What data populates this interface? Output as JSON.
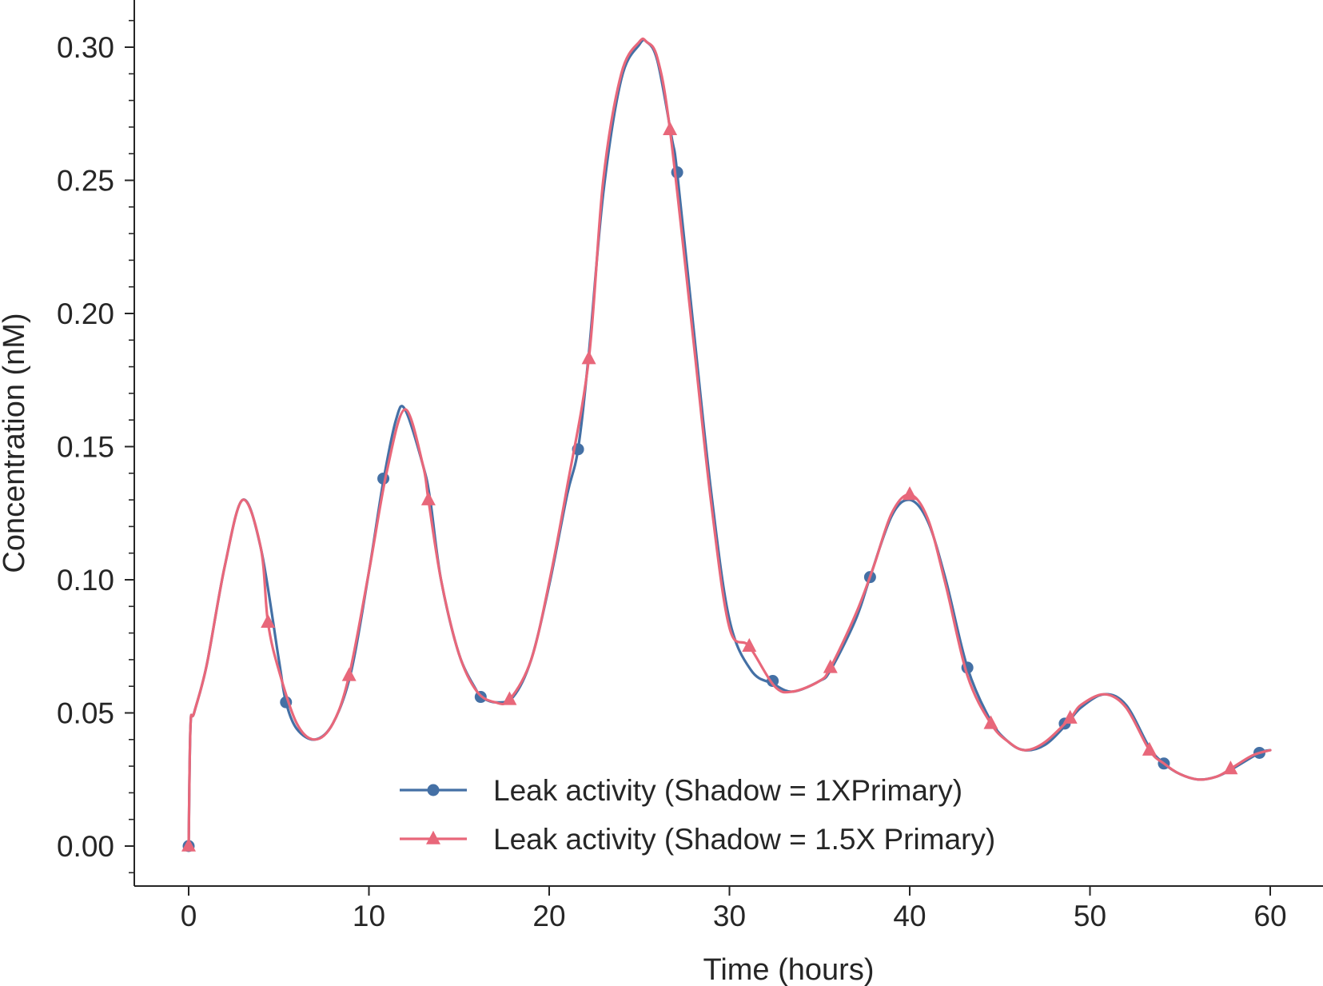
{
  "chart_data": {
    "type": "line",
    "title": "",
    "xlabel": "Time (hours)",
    "ylabel": "Concentration (nM)",
    "xlim": [
      -3,
      63
    ],
    "ylim": [
      -0.015,
      0.318
    ],
    "xticks": [
      0,
      10,
      20,
      30,
      40,
      50,
      60
    ],
    "xtick_labels": [
      "0",
      "10",
      "20",
      "30",
      "40",
      "50",
      "60"
    ],
    "yticks": [
      0.0,
      0.05,
      0.1,
      0.15,
      0.2,
      0.25,
      0.3
    ],
    "ytick_labels": [
      "0.00",
      "0.05",
      "0.10",
      "0.15",
      "0.20",
      "0.25",
      "0.30"
    ],
    "grid": false,
    "legend_position": "lower-center",
    "series": [
      {
        "name": "Leak activity (Shadow = 1XPrimary)",
        "color": "#4470a5",
        "marker": "circle",
        "x": [
          0,
          0.1,
          0.3,
          1,
          2,
          3,
          4,
          5,
          5.4,
          6,
          7,
          8,
          9,
          10,
          10.8,
          11.5,
          12,
          13,
          13.4,
          14,
          15,
          16,
          16.2,
          17,
          18,
          19,
          20,
          21,
          21.6,
          22.2,
          23,
          24,
          25,
          25.4,
          26,
          26.8,
          27.1,
          28,
          29,
          30,
          31.2,
          32.4,
          33.5,
          35,
          35.6,
          37,
          37.8,
          39,
          40,
          41,
          42,
          43.2,
          44.5,
          45.5,
          46.4,
          47.5,
          48.6,
          49.5,
          50.8,
          52,
          53.3,
          54.1,
          55,
          56,
          57,
          57.9,
          59.4,
          60
        ],
        "y": [
          0.0,
          0.045,
          0.05,
          0.068,
          0.105,
          0.13,
          0.112,
          0.07,
          0.054,
          0.044,
          0.04,
          0.046,
          0.065,
          0.103,
          0.137,
          0.16,
          0.164,
          0.143,
          0.13,
          0.1,
          0.072,
          0.058,
          0.056,
          0.054,
          0.056,
          0.07,
          0.098,
          0.132,
          0.149,
          0.185,
          0.245,
          0.288,
          0.301,
          0.302,
          0.295,
          0.266,
          0.253,
          0.195,
          0.132,
          0.085,
          0.066,
          0.061,
          0.058,
          0.062,
          0.066,
          0.085,
          0.101,
          0.124,
          0.13,
          0.122,
          0.1,
          0.067,
          0.047,
          0.039,
          0.036,
          0.038,
          0.045,
          0.052,
          0.057,
          0.053,
          0.037,
          0.031,
          0.027,
          0.025,
          0.026,
          0.029,
          0.035,
          0.036
        ],
        "markers_x": [
          0,
          5.4,
          10.8,
          16.2,
          21.6,
          27.1,
          32.4,
          37.8,
          43.2,
          48.6,
          54.1,
          59.4
        ],
        "markers_y": [
          0.0,
          0.054,
          0.138,
          0.056,
          0.149,
          0.253,
          0.062,
          0.101,
          0.067,
          0.046,
          0.031,
          0.035
        ]
      },
      {
        "name": "Leak activity (Shadow = 1.5X Primary)",
        "color": "#e8677a",
        "marker": "triangle",
        "x": [
          0,
          0.1,
          0.3,
          1,
          2,
          3,
          4,
          4.4,
          5,
          6,
          7,
          8,
          8.9,
          10,
          11,
          12,
          13,
          13.3,
          14,
          15,
          16,
          17,
          17.8,
          19,
          20,
          21,
          22.2,
          23,
          24,
          25,
          25.4,
          26,
          26.7,
          28,
          29,
          30,
          31.1,
          32.5,
          33.5,
          35,
          35.6,
          37,
          38,
          39,
          40,
          41,
          42,
          43.2,
          44.5,
          45.5,
          46.4,
          47.5,
          48.9,
          49.5,
          50.8,
          52,
          53.3,
          54.1,
          55,
          56,
          57,
          57.8,
          59,
          60
        ],
        "y": [
          0.0,
          0.045,
          0.05,
          0.068,
          0.105,
          0.13,
          0.112,
          0.084,
          0.066,
          0.046,
          0.04,
          0.046,
          0.064,
          0.103,
          0.141,
          0.164,
          0.143,
          0.13,
          0.1,
          0.072,
          0.058,
          0.054,
          0.055,
          0.07,
          0.099,
          0.135,
          0.183,
          0.25,
          0.29,
          0.302,
          0.302,
          0.296,
          0.269,
          0.19,
          0.128,
          0.082,
          0.075,
          0.06,
          0.058,
          0.062,
          0.067,
          0.087,
          0.105,
          0.125,
          0.132,
          0.123,
          0.098,
          0.064,
          0.046,
          0.039,
          0.036,
          0.039,
          0.048,
          0.053,
          0.057,
          0.052,
          0.036,
          0.031,
          0.027,
          0.025,
          0.026,
          0.029,
          0.034,
          0.036
        ],
        "markers_x": [
          0,
          4.4,
          8.9,
          13.3,
          17.8,
          22.2,
          26.7,
          31.1,
          35.6,
          40.0,
          44.5,
          48.9,
          53.3,
          57.8
        ],
        "markers_y": [
          0.0,
          0.084,
          0.064,
          0.13,
          0.055,
          0.183,
          0.269,
          0.075,
          0.067,
          0.132,
          0.046,
          0.048,
          0.036,
          0.029
        ]
      }
    ]
  }
}
